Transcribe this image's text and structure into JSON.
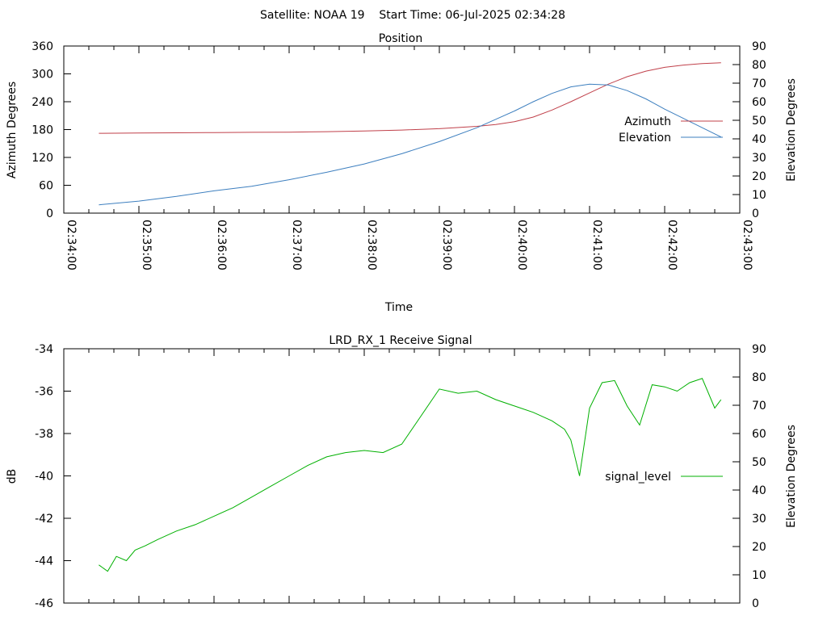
{
  "figure": {
    "title": "Satellite: NOAA 19    Start Time: 06-Jul-2025 02:34:28"
  },
  "chart_data": [
    {
      "type": "line",
      "title": "Position",
      "xlabel": "Time",
      "ylabel": "Azimuth Degrees",
      "y2label": "Elevation Degrees",
      "xlim": [
        "02:34:00",
        "02:43:00"
      ],
      "x_ticks": [
        "02:34:00",
        "02:35:00",
        "02:36:00",
        "02:37:00",
        "02:38:00",
        "02:39:00",
        "02:40:00",
        "02:41:00",
        "02:42:00",
        "02:43:00"
      ],
      "ylim": [
        0,
        360
      ],
      "y_ticks": [
        "0",
        "60",
        "120",
        "180",
        "240",
        "300",
        "360"
      ],
      "y2lim": [
        0,
        90
      ],
      "y2_ticks": [
        "0",
        "10",
        "20",
        "30",
        "40",
        "50",
        "60",
        "70",
        "80",
        "90"
      ],
      "grid": false,
      "legend_position": "right",
      "series": [
        {
          "name": "Azimuth",
          "axis": "left",
          "color": "#c0404a",
          "x": [
            "02:34:28",
            "02:35:00",
            "02:35:30",
            "02:36:00",
            "02:36:30",
            "02:37:00",
            "02:37:30",
            "02:38:00",
            "02:38:30",
            "02:39:00",
            "02:39:30",
            "02:39:45",
            "02:40:00",
            "02:40:15",
            "02:40:30",
            "02:40:45",
            "02:41:00",
            "02:41:15",
            "02:41:30",
            "02:41:45",
            "02:42:00",
            "02:42:15",
            "02:42:30",
            "02:42:45"
          ],
          "values": [
            172,
            172.5,
            173,
            173.5,
            174,
            174.5,
            175.5,
            177,
            179,
            182,
            187,
            191,
            197,
            207,
            222,
            240,
            259,
            278,
            294,
            306,
            314,
            319,
            322,
            324
          ]
        },
        {
          "name": "Elevation",
          "axis": "right",
          "color": "#3d7fbf",
          "x": [
            "02:34:28",
            "02:35:00",
            "02:35:30",
            "02:36:00",
            "02:36:30",
            "02:37:00",
            "02:37:30",
            "02:38:00",
            "02:38:30",
            "02:39:00",
            "02:39:30",
            "02:39:45",
            "02:40:00",
            "02:40:15",
            "02:40:30",
            "02:40:45",
            "02:41:00",
            "02:41:15",
            "02:41:30",
            "02:41:45",
            "02:42:00",
            "02:42:15",
            "02:42:30",
            "02:42:45"
          ],
          "values": [
            4.5,
            6.5,
            9,
            12,
            14.5,
            18,
            22,
            26.5,
            32,
            38.5,
            46,
            50.5,
            55,
            60,
            64.5,
            68,
            69.5,
            69,
            66,
            61.5,
            56,
            51,
            46,
            41
          ]
        }
      ]
    },
    {
      "type": "line",
      "title": "LRD_RX_1 Receive Signal",
      "xlabel": "",
      "ylabel": "dB",
      "y2label": "Elevation Degrees",
      "xlim": [
        "02:34:00",
        "02:43:00"
      ],
      "ylim": [
        -46,
        -34
      ],
      "y_ticks": [
        "-46",
        "-44",
        "-42",
        "-40",
        "-38",
        "-36",
        "-34"
      ],
      "y2lim": [
        0,
        90
      ],
      "y2_ticks": [
        "0",
        "10",
        "20",
        "30",
        "40",
        "50",
        "60",
        "70",
        "80",
        "90"
      ],
      "grid": false,
      "legend_position": "right",
      "series": [
        {
          "name": "signal_level",
          "axis": "left",
          "color": "#00b000",
          "x": [
            "02:34:28",
            "02:34:35",
            "02:34:42",
            "02:34:50",
            "02:34:57",
            "02:35:05",
            "02:35:15",
            "02:35:30",
            "02:35:45",
            "02:36:00",
            "02:36:15",
            "02:36:30",
            "02:36:45",
            "02:37:00",
            "02:37:15",
            "02:37:30",
            "02:37:45",
            "02:38:00",
            "02:38:15",
            "02:38:30",
            "02:38:45",
            "02:39:00",
            "02:39:15",
            "02:39:30",
            "02:39:45",
            "02:40:00",
            "02:40:15",
            "02:40:30",
            "02:40:40",
            "02:40:45",
            "02:40:52",
            "02:41:00",
            "02:41:10",
            "02:41:20",
            "02:41:30",
            "02:41:40",
            "02:41:50",
            "02:42:00",
            "02:42:10",
            "02:42:20",
            "02:42:30",
            "02:42:40",
            "02:42:45"
          ],
          "values": [
            -44.2,
            -44.5,
            -43.8,
            -44.0,
            -43.5,
            -43.3,
            -43.0,
            -42.6,
            -42.3,
            -41.9,
            -41.5,
            -41.0,
            -40.5,
            -40.0,
            -39.5,
            -39.1,
            -38.9,
            -38.8,
            -38.9,
            -38.5,
            -37.2,
            -35.9,
            -36.1,
            -36.0,
            -36.4,
            -36.7,
            -37.0,
            -37.4,
            -37.8,
            -38.3,
            -40.0,
            -36.8,
            -35.6,
            -35.5,
            -36.7,
            -37.6,
            -35.7,
            -35.8,
            -36.0,
            -35.6,
            -35.4,
            -36.8,
            -36.4
          ]
        }
      ]
    }
  ]
}
